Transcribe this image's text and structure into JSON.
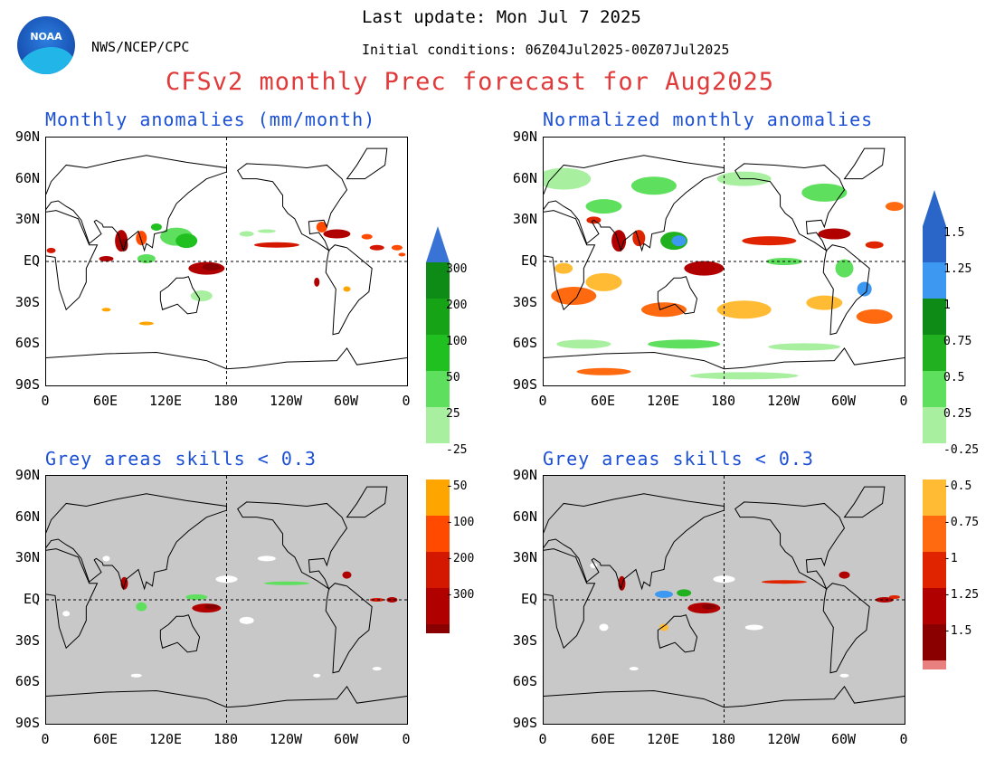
{
  "header": {
    "last_update": "Last update: Mon Jul 7 2025",
    "initial_conditions": "Initial conditions: 06Z04Jul2025-00Z07Jul2025",
    "agency": "NWS/NCEP/CPC",
    "logo_text": "NOAA",
    "main_title": "CFSv2 monthly Prec forecast for Aug2025"
  },
  "panels": [
    {
      "title": "Monthly anomalies (mm/month)"
    },
    {
      "title": "Normalized monthly anomalies"
    },
    {
      "title": "Grey areas skills < 0.3"
    },
    {
      "title": "Grey areas skills < 0.3"
    }
  ],
  "axes": {
    "lat_labels": [
      "90N",
      "60N",
      "30N",
      "EQ",
      "30S",
      "60S",
      "90S"
    ],
    "lon_labels": [
      "0",
      "60E",
      "120E",
      "180",
      "120W",
      "60W",
      "0"
    ]
  },
  "colorbar_left": {
    "labels": [
      "300",
      "200",
      "100",
      "50",
      "25",
      "-25",
      "-50",
      "-100",
      "-200",
      "-300"
    ],
    "colors": [
      "#3a73d6",
      "#0e8a16",
      "#16a316",
      "#20c020",
      "#5ee05e",
      "#a8f0a0",
      "#ffffff",
      "#ffa500",
      "#ff4a00",
      "#d41800",
      "#b00000",
      "#8a0000",
      "#6b3a2e"
    ]
  },
  "colorbar_right": {
    "labels": [
      "1.5",
      "1.25",
      "1",
      "0.75",
      "0.5",
      "0.25",
      "-0.25",
      "-0.5",
      "-0.75",
      "-1",
      "-1.25",
      "-1.5"
    ],
    "colors": [
      "#2a66c8",
      "#2a66c8",
      "#3c98f0",
      "#0e8a16",
      "#20b020",
      "#5ee05e",
      "#a8f0a0",
      "#ffffff",
      "#ffbb33",
      "#ff6a10",
      "#e02400",
      "#b00000",
      "#8a0000",
      "#e88080",
      "#6b3a2e"
    ]
  }
}
